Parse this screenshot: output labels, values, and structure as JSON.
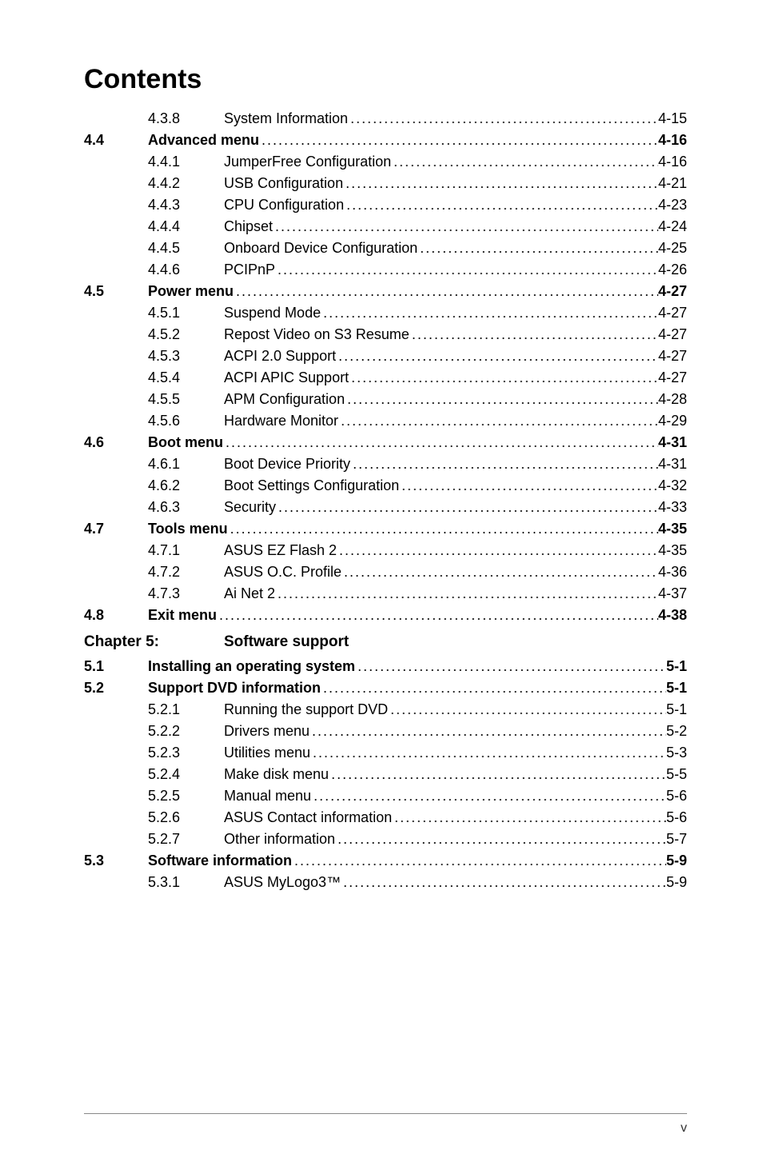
{
  "title": "Contents",
  "entries": [
    {
      "section": "",
      "sub": "4.3.8",
      "title": "System Information",
      "page": "4-15",
      "bold": false
    },
    {
      "section": "4.4",
      "sub": "",
      "title": "Advanced menu",
      "page": "4-16",
      "bold": true
    },
    {
      "section": "",
      "sub": "4.4.1",
      "title": "JumperFree Configuration",
      "page": "4-16",
      "bold": false
    },
    {
      "section": "",
      "sub": "4.4.2",
      "title": "USB Configuration",
      "page": "4-21",
      "bold": false
    },
    {
      "section": "",
      "sub": "4.4.3",
      "title": "CPU Configuration",
      "page": "4-23",
      "bold": false
    },
    {
      "section": "",
      "sub": "4.4.4",
      "title": "Chipset",
      "page": "4-24",
      "bold": false
    },
    {
      "section": "",
      "sub": "4.4.5",
      "title": "Onboard Device Configuration",
      "page": "4-25",
      "bold": false
    },
    {
      "section": "",
      "sub": "4.4.6",
      "title": "PCIPnP",
      "page": "4-26",
      "bold": false
    },
    {
      "section": "4.5",
      "sub": "",
      "title": "Power menu",
      "page": "4-27",
      "bold": true
    },
    {
      "section": "",
      "sub": "4.5.1",
      "title": "Suspend Mode",
      "page": "4-27",
      "bold": false
    },
    {
      "section": "",
      "sub": "4.5.2",
      "title": "Repost Video on S3 Resume",
      "page": "4-27",
      "bold": false
    },
    {
      "section": "",
      "sub": "4.5.3",
      "title": "ACPI 2.0 Support",
      "page": "4-27",
      "bold": false
    },
    {
      "section": "",
      "sub": "4.5.4",
      "title": "ACPI APIC Support",
      "page": "4-27",
      "bold": false
    },
    {
      "section": "",
      "sub": "4.5.5",
      "title": "APM Configuration",
      "page": "4-28",
      "bold": false
    },
    {
      "section": "",
      "sub": "4.5.6",
      "title": "Hardware Monitor",
      "page": "4-29",
      "bold": false
    },
    {
      "section": "4.6",
      "sub": "",
      "title": "Boot menu",
      "page": "4-31",
      "bold": true
    },
    {
      "section": "",
      "sub": "4.6.1",
      "title": "Boot Device Priority",
      "page": "4-31",
      "bold": false
    },
    {
      "section": "",
      "sub": "4.6.2",
      "title": "Boot Settings Configuration",
      "page": "4-32",
      "bold": false
    },
    {
      "section": "",
      "sub": "4.6.3",
      "title": "Security",
      "page": "4-33",
      "bold": false
    },
    {
      "section": "4.7",
      "sub": "",
      "title": "Tools menu",
      "page": "4-35",
      "bold": true
    },
    {
      "section": "",
      "sub": "4.7.1",
      "title": "ASUS EZ Flash 2",
      "page": "4-35",
      "bold": false
    },
    {
      "section": "",
      "sub": "4.7.2",
      "title": "ASUS O.C. Profile",
      "page": "4-36",
      "bold": false
    },
    {
      "section": "",
      "sub": "4.7.3",
      "title": "Ai Net 2",
      "page": "4-37",
      "bold": false
    },
    {
      "section": "4.8",
      "sub": "",
      "title": "Exit menu",
      "page": "4-38",
      "bold": true
    }
  ],
  "chapter": {
    "label": "Chapter 5:",
    "title": "Software support"
  },
  "entries2": [
    {
      "section": "5.1",
      "sub": "",
      "title": "Installing an operating system",
      "page": "5-1",
      "bold": true
    },
    {
      "section": "5.2",
      "sub": "",
      "title": "Support DVD information",
      "page": "5-1",
      "bold": true
    },
    {
      "section": "",
      "sub": "5.2.1",
      "title": "Running the support DVD",
      "page": "5-1",
      "bold": false
    },
    {
      "section": "",
      "sub": "5.2.2",
      "title": "Drivers menu",
      "page": "5-2",
      "bold": false
    },
    {
      "section": "",
      "sub": "5.2.3",
      "title": "Utilities menu",
      "page": "5-3",
      "bold": false
    },
    {
      "section": "",
      "sub": "5.2.4",
      "title": "Make disk menu",
      "page": "5-5",
      "bold": false
    },
    {
      "section": "",
      "sub": "5.2.5",
      "title": "Manual menu",
      "page": "5-6",
      "bold": false
    },
    {
      "section": "",
      "sub": "5.2.6",
      "title": "ASUS Contact information",
      "page": "5-6",
      "bold": false
    },
    {
      "section": "",
      "sub": "5.2.7",
      "title": "Other information",
      "page": "5-7",
      "bold": false
    },
    {
      "section": "5.3",
      "sub": "",
      "title": "Software information",
      "page": "5-9",
      "bold": true
    },
    {
      "section": "",
      "sub": "5.3.1",
      "title": "ASUS MyLogo3™",
      "page": "5-9",
      "bold": false
    }
  ],
  "footer_page": "v"
}
